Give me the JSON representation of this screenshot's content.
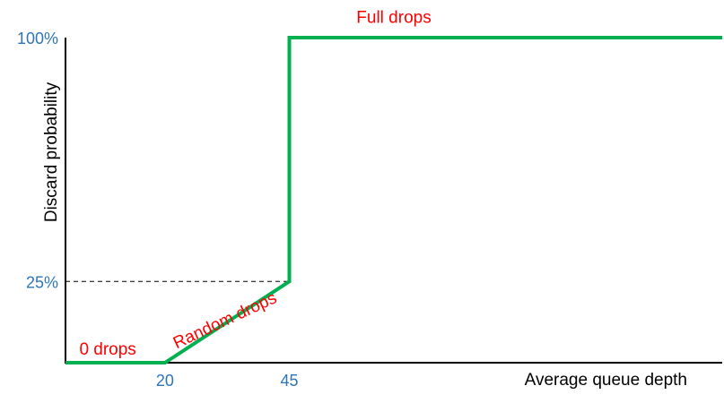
{
  "chart_data": {
    "type": "line",
    "title": "",
    "xlabel": "Average queue depth",
    "ylabel": "Discard probability",
    "x_ticks": [
      {
        "value": 20,
        "label": "20"
      },
      {
        "value": 45,
        "label": "45"
      }
    ],
    "y_ticks": [
      {
        "value": 25,
        "label": "25%"
      },
      {
        "value": 100,
        "label": "100%"
      }
    ],
    "series": [
      {
        "points": [
          {
            "x": 0,
            "y": 0
          },
          {
            "x": 20,
            "y": 0
          },
          {
            "x": 45,
            "y": 25
          },
          {
            "x": 45,
            "y": 100
          },
          {
            "x": 132,
            "y": 100
          }
        ]
      }
    ],
    "reference_lines": [
      {
        "style": "dashed",
        "from": {
          "x": 0,
          "y": 25
        },
        "to": {
          "x": 45,
          "y": 25
        }
      }
    ],
    "annotations": [
      {
        "text": "0 drops",
        "x": 8.5,
        "y": 2.5,
        "angle_deg": 0
      },
      {
        "text": "Random drops",
        "x": 32.5,
        "y": 11.5,
        "angle_deg": -25
      },
      {
        "text": "Full drops",
        "x": 66,
        "y": 104.5,
        "angle_deg": 0
      }
    ],
    "xlim": [
      0,
      132
    ],
    "ylim": [
      0,
      100
    ],
    "grid": false,
    "colors": {
      "line": "#00b050",
      "tick_labels": "#2e75b6",
      "annotations": "#ff0000",
      "axes": "#000000"
    }
  }
}
